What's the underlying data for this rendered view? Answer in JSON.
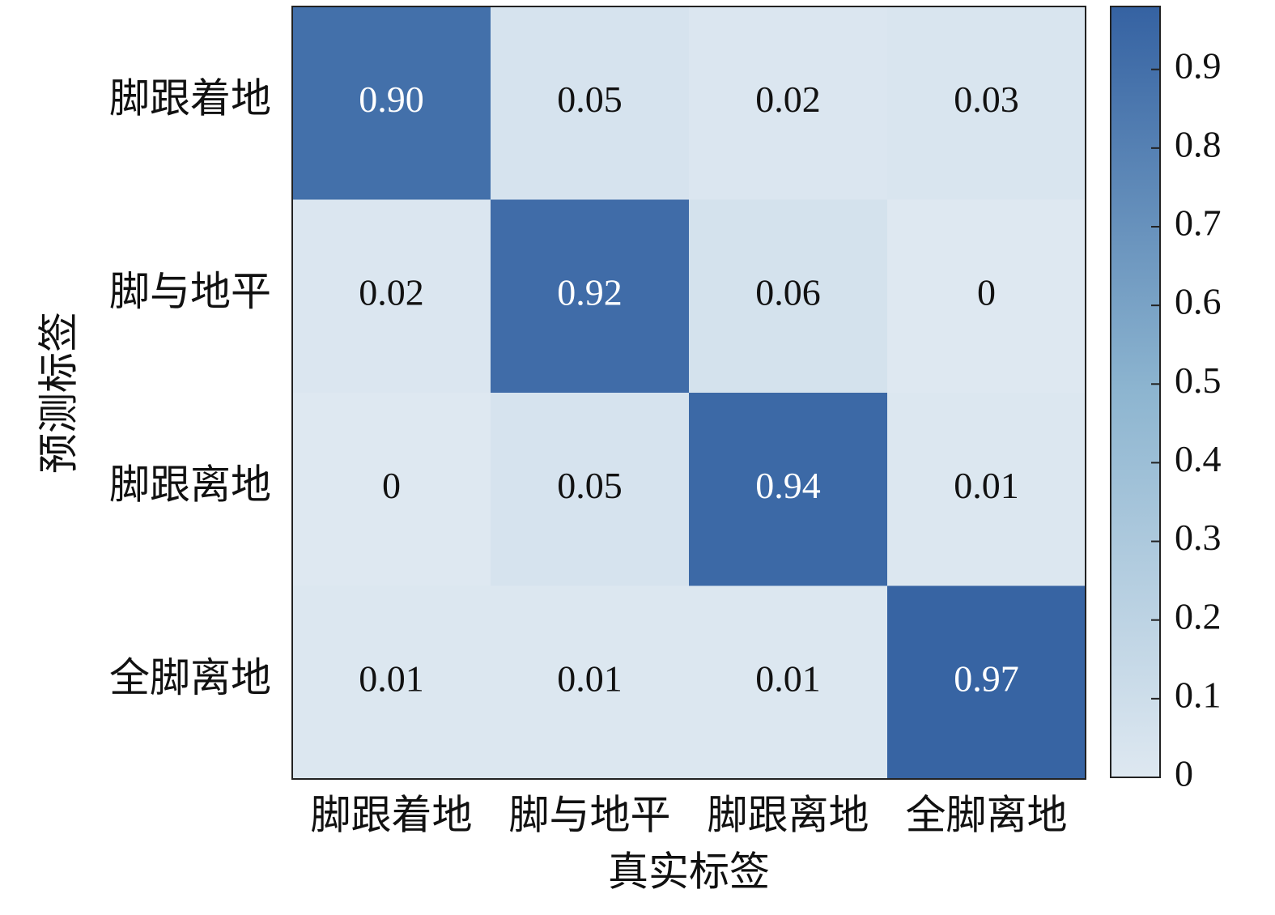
{
  "chart_data": {
    "type": "heatmap",
    "xlabel": "真实标签",
    "ylabel": "预测标签",
    "x_categories": [
      "脚跟着地",
      "脚与地平",
      "脚跟离地",
      "全脚离地"
    ],
    "y_categories": [
      "脚跟着地",
      "脚与地平",
      "脚跟离地",
      "全脚离地"
    ],
    "values": [
      [
        0.9,
        0.05,
        0.02,
        0.03
      ],
      [
        0.02,
        0.92,
        0.06,
        0
      ],
      [
        0,
        0.05,
        0.94,
        0.01
      ],
      [
        0.01,
        0.01,
        0.01,
        0.97
      ]
    ],
    "value_labels": [
      [
        "0.90",
        "0.05",
        "0.02",
        "0.03"
      ],
      [
        "0.02",
        "0.92",
        "0.06",
        "0"
      ],
      [
        "0",
        "0.05",
        "0.94",
        "0.01"
      ],
      [
        "0.01",
        "0.01",
        "0.01",
        "0.97"
      ]
    ],
    "colormap": [
      "#dee8f1",
      "#8db5d0",
      "#3562a2"
    ],
    "clim": [
      0,
      0.98
    ],
    "cticks": [
      0,
      0.1,
      0.2,
      0.3,
      0.4,
      0.5,
      0.6,
      0.7,
      0.8,
      0.9
    ]
  }
}
